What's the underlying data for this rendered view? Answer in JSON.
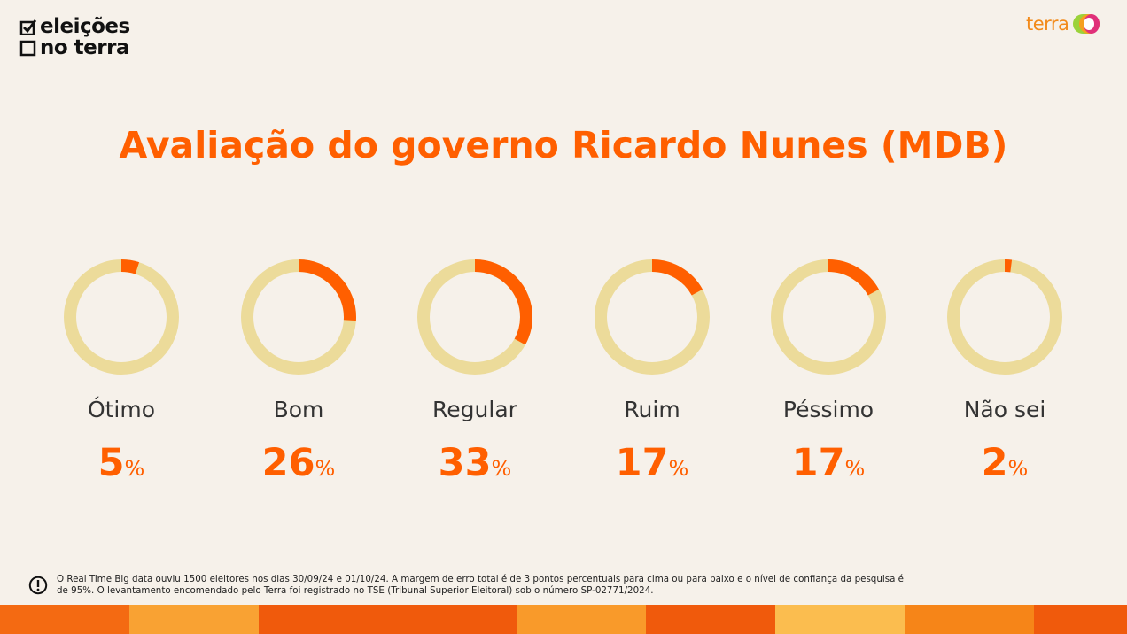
{
  "brand": {
    "logo_line1": "eleições",
    "logo_line2": "no terra",
    "partner": "terra"
  },
  "chart_data": {
    "type": "pie",
    "title": "Avaliação do governo Ricardo Nunes (MDB)",
    "categories": [
      "Ótimo",
      "Bom",
      "Regular",
      "Ruim",
      "Péssimo",
      "Não sei"
    ],
    "values": [
      5,
      26,
      33,
      17,
      17,
      2
    ],
    "unit": "%",
    "colors": {
      "value": "#ff5f00",
      "track": "#ecdb9a",
      "label": "#333333"
    }
  },
  "footer": {
    "note": "O Real Time Big data ouviu 1500 eleitores nos dias 30/09/24 e 01/10/24. A margem de erro total é de 3 pontos percentuais para cima ou para baixo e o nível de confiança da pesquisa é de 95%. O levantamento encomendado pelo Terra foi registrado no TSE (Tribunal Superior Eleitoral) sob o número SP-02771/2024."
  },
  "colors": {
    "accent": "#ff5f00",
    "background": "#f6f1ea",
    "stripe": [
      "#f46a12",
      "#f9a233",
      "#f05a0c",
      "#f99a2a",
      "#f05a0c",
      "#fbbd4f",
      "#f68518",
      "#f05a0c"
    ]
  }
}
